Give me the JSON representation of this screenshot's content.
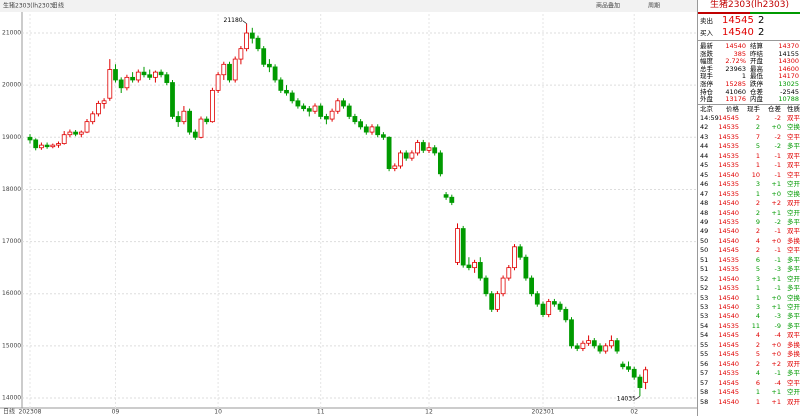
{
  "chart_data": {
    "type": "candlestick",
    "title": "生猪2303(lh2303)",
    "period": "日线",
    "ylim": [
      13808,
      21365
    ],
    "yticks": [
      14000,
      15000,
      16000,
      17000,
      18000,
      19000,
      20000,
      21000
    ],
    "grid": true,
    "up_color": "#e00000",
    "down_color": "#009a00",
    "categories": [
      "202308",
      null,
      null,
      null,
      null,
      null,
      null,
      null,
      null,
      null,
      null,
      null,
      null,
      null,
      null,
      "09",
      null,
      null,
      null,
      null,
      null,
      null,
      null,
      null,
      null,
      null,
      null,
      null,
      null,
      null,
      null,
      null,
      null,
      "10",
      null,
      null,
      null,
      null,
      null,
      null,
      null,
      null,
      null,
      null,
      null,
      null,
      null,
      null,
      null,
      null,
      null,
      "11",
      null,
      null,
      null,
      null,
      null,
      null,
      null,
      null,
      null,
      null,
      null,
      null,
      null,
      null,
      null,
      null,
      null,
      null,
      "12",
      null,
      null,
      null,
      null,
      null,
      null,
      null,
      null,
      null,
      null,
      null,
      null,
      null,
      null,
      null,
      null,
      null,
      null,
      null,
      "202301",
      null,
      null,
      null,
      null,
      null,
      null,
      null,
      null,
      null,
      null,
      null,
      null,
      null,
      null,
      null,
      "02",
      null,
      null
    ],
    "candles": [
      [
        19000,
        19060,
        18880,
        18950
      ],
      [
        18950,
        18980,
        18750,
        18800
      ],
      [
        18800,
        18900,
        18760,
        18850
      ],
      [
        18850,
        18900,
        18780,
        18820
      ],
      [
        18820,
        18880,
        18790,
        18850
      ],
      [
        18850,
        18920,
        18800,
        18880
      ],
      [
        18880,
        19120,
        18860,
        19050
      ],
      [
        19050,
        19150,
        19000,
        19100
      ],
      [
        19100,
        19140,
        19020,
        19060
      ],
      [
        19060,
        19130,
        19000,
        19100
      ],
      [
        19100,
        19350,
        19080,
        19300
      ],
      [
        19300,
        19500,
        19250,
        19450
      ],
      [
        19450,
        19700,
        19400,
        19650
      ],
      [
        19650,
        19750,
        19550,
        19700
      ],
      [
        19750,
        20500,
        19700,
        20300
      ],
      [
        20300,
        20400,
        20050,
        20100
      ],
      [
        20100,
        20150,
        19850,
        19950
      ],
      [
        19950,
        20200,
        19900,
        20150
      ],
      [
        20150,
        20250,
        20050,
        20100
      ],
      [
        20100,
        20300,
        20050,
        20250
      ],
      [
        20250,
        20350,
        20150,
        20200
      ],
      [
        20200,
        20300,
        20100,
        20150
      ],
      [
        20150,
        20280,
        20050,
        20250
      ],
      [
        20250,
        20300,
        20150,
        20200
      ],
      [
        20200,
        20250,
        20000,
        20050
      ],
      [
        20050,
        20100,
        19350,
        19400
      ],
      [
        19400,
        19500,
        19200,
        19300
      ],
      [
        19300,
        19600,
        19250,
        19500
      ],
      [
        19500,
        19550,
        19050,
        19100
      ],
      [
        19100,
        19150,
        18950,
        19000
      ],
      [
        19000,
        19400,
        18980,
        19350
      ],
      [
        19350,
        19400,
        19250,
        19300
      ],
      [
        19300,
        19950,
        19280,
        19900
      ],
      [
        19900,
        20250,
        19850,
        20200
      ],
      [
        20200,
        20450,
        20100,
        20400
      ],
      [
        20400,
        20450,
        20050,
        20100
      ],
      [
        20100,
        20550,
        20050,
        20500
      ],
      [
        20500,
        20750,
        20400,
        20700
      ],
      [
        20700,
        21180,
        20650,
        21000
      ],
      [
        21000,
        21100,
        20800,
        20900
      ],
      [
        20900,
        20950,
        20650,
        20700
      ],
      [
        20700,
        20750,
        20350,
        20400
      ],
      [
        20400,
        20500,
        20250,
        20350
      ],
      [
        20350,
        20400,
        20050,
        20100
      ],
      [
        20100,
        20150,
        19850,
        19900
      ],
      [
        19900,
        20000,
        19800,
        19850
      ],
      [
        19850,
        19900,
        19650,
        19700
      ],
      [
        19700,
        19750,
        19550,
        19600
      ],
      [
        19600,
        19650,
        19500,
        19550
      ],
      [
        19550,
        19600,
        19400,
        19500
      ],
      [
        19500,
        19650,
        19450,
        19600
      ],
      [
        19600,
        19650,
        19350,
        19400
      ],
      [
        19400,
        19450,
        19250,
        19350
      ],
      [
        19350,
        19550,
        19300,
        19500
      ],
      [
        19500,
        19750,
        19450,
        19700
      ],
      [
        19700,
        19750,
        19550,
        19600
      ],
      [
        19600,
        19650,
        19350,
        19400
      ],
      [
        19400,
        19450,
        19250,
        19300
      ],
      [
        19300,
        19350,
        19150,
        19200
      ],
      [
        19200,
        19250,
        19050,
        19100
      ],
      [
        19100,
        19250,
        19050,
        19200
      ],
      [
        19200,
        19250,
        19000,
        19050
      ],
      [
        19050,
        19100,
        18950,
        19000
      ],
      [
        19000,
        19020,
        18350,
        18400
      ],
      [
        18400,
        18500,
        18350,
        18450
      ],
      [
        18450,
        18750,
        18400,
        18700
      ],
      [
        18700,
        18750,
        18550,
        18600
      ],
      [
        18600,
        18750,
        18550,
        18700
      ],
      [
        18700,
        18950,
        18650,
        18900
      ],
      [
        18900,
        18950,
        18700,
        18750
      ],
      [
        18750,
        18900,
        18700,
        18800
      ],
      [
        18800,
        18850,
        18650,
        18700
      ],
      [
        18700,
        18750,
        18250,
        18300
      ],
      [
        17900,
        17950,
        17800,
        17850
      ],
      [
        17850,
        17900,
        17700,
        17750
      ],
      [
        16600,
        17350,
        16550,
        17250
      ],
      [
        17250,
        17300,
        16500,
        16550
      ],
      [
        16550,
        16700,
        16450,
        16500
      ],
      [
        16500,
        16650,
        16400,
        16600
      ],
      [
        16600,
        16700,
        16250,
        16300
      ],
      [
        16300,
        16350,
        15950,
        16000
      ],
      [
        16000,
        16050,
        15650,
        15700
      ],
      [
        15700,
        16050,
        15650,
        16000
      ],
      [
        16000,
        16350,
        15950,
        16300
      ],
      [
        16300,
        16550,
        16250,
        16500
      ],
      [
        16500,
        16950,
        16450,
        16900
      ],
      [
        16900,
        16950,
        16650,
        16700
      ],
      [
        16700,
        16750,
        16250,
        16300
      ],
      [
        16300,
        16350,
        15950,
        16000
      ],
      [
        16000,
        16050,
        15750,
        15800
      ],
      [
        15800,
        15850,
        15550,
        15600
      ],
      [
        15600,
        15900,
        15550,
        15850
      ],
      [
        15850,
        15900,
        15750,
        15800
      ],
      [
        15800,
        15850,
        15650,
        15700
      ],
      [
        15700,
        15750,
        15450,
        15500
      ],
      [
        15500,
        15550,
        14950,
        15000
      ],
      [
        15000,
        15050,
        14900,
        14950
      ],
      [
        14950,
        15100,
        14900,
        15050
      ],
      [
        15050,
        15200,
        15000,
        15100
      ],
      [
        15100,
        15150,
        14950,
        15000
      ],
      [
        15000,
        15050,
        14850,
        14900
      ],
      [
        14900,
        15050,
        14850,
        15000
      ],
      [
        15000,
        15200,
        14950,
        15100
      ],
      [
        15100,
        15150,
        14850,
        14900
      ],
      [
        14650,
        14700,
        14550,
        14600
      ],
      [
        14600,
        14700,
        14500,
        14550
      ],
      [
        14550,
        14600,
        14350,
        14400
      ],
      [
        14400,
        14450,
        14035,
        14200
      ],
      [
        14300,
        14600,
        14170,
        14540
      ]
    ]
  },
  "toolbar": {
    "buttons": [
      "商品叠加",
      "周期"
    ]
  },
  "quote": {
    "title": "生猪2303(lh2303)",
    "ask": [
      "卖出",
      "14545",
      "2"
    ],
    "bid": [
      "买入",
      "14540",
      "2"
    ],
    "stats": [
      [
        "最新",
        "14540",
        "结算",
        "14370"
      ],
      [
        "涨跌",
        "385",
        "昨结",
        "14155"
      ],
      [
        "幅度",
        "2.72%",
        "开盘",
        "14300"
      ],
      [
        "总手",
        "23963",
        "最高",
        "14600"
      ],
      [
        "现手",
        "1",
        "最低",
        "14170"
      ],
      [
        "涨停",
        "15285",
        "跌停",
        "13025"
      ],
      [
        "持仓",
        "41060",
        "仓差",
        "-2545"
      ],
      [
        "外盘",
        "13176",
        "内盘",
        "10788"
      ]
    ],
    "stat_colors": [
      [
        "#e00000",
        "#e00000"
      ],
      [
        "#e00000",
        "#000000"
      ],
      [
        "#e00000",
        "#e00000"
      ],
      [
        "#000000",
        "#e00000"
      ],
      [
        "#000000",
        "#e00000"
      ],
      [
        "#e00000",
        "#009a00"
      ],
      [
        "#000000",
        "#000000"
      ],
      [
        "#e00000",
        "#009a00"
      ]
    ],
    "trade_header": [
      "北京",
      "价格",
      "现手",
      "仓差",
      "性质"
    ],
    "trades": [
      [
        "14:59",
        "14545",
        "2",
        "-2",
        "双平"
      ],
      [
        "42",
        "14535",
        "2",
        "+0",
        "空换"
      ],
      [
        "43",
        "14535",
        "7",
        "-2",
        "空平"
      ],
      [
        "44",
        "14535",
        "5",
        "-2",
        "多平"
      ],
      [
        "44",
        "14535",
        "1",
        "-1",
        "双平"
      ],
      [
        "45",
        "14535",
        "1",
        "-1",
        "双平"
      ],
      [
        "45",
        "14540",
        "10",
        "-1",
        "空平"
      ],
      [
        "46",
        "14535",
        "3",
        "+1",
        "空开"
      ],
      [
        "47",
        "14535",
        "1",
        "+0",
        "空换"
      ],
      [
        "48",
        "14540",
        "2",
        "+2",
        "双开"
      ],
      [
        "48",
        "14540",
        "2",
        "+1",
        "空开"
      ],
      [
        "49",
        "14535",
        "9",
        "-2",
        "多平"
      ],
      [
        "49",
        "14540",
        "2",
        "-1",
        "双平"
      ],
      [
        "50",
        "14540",
        "4",
        "+0",
        "多换"
      ],
      [
        "50",
        "14545",
        "2",
        "-1",
        "空平"
      ],
      [
        "51",
        "14535",
        "6",
        "-1",
        "多平"
      ],
      [
        "51",
        "14535",
        "5",
        "-3",
        "多平"
      ],
      [
        "52",
        "14540",
        "3",
        "+1",
        "空开"
      ],
      [
        "52",
        "14535",
        "1",
        "-1",
        "多平"
      ],
      [
        "53",
        "14540",
        "1",
        "+0",
        "空换"
      ],
      [
        "53",
        "14540",
        "3",
        "+1",
        "空开"
      ],
      [
        "53",
        "14540",
        "4",
        "-3",
        "多平"
      ],
      [
        "54",
        "14535",
        "11",
        "-9",
        "多平"
      ],
      [
        "54",
        "14545",
        "4",
        "-4",
        "双平"
      ],
      [
        "55",
        "14545",
        "2",
        "+0",
        "多换"
      ],
      [
        "55",
        "14545",
        "5",
        "+0",
        "多换"
      ],
      [
        "56",
        "14540",
        "2",
        "+2",
        "双开"
      ],
      [
        "57",
        "14535",
        "4",
        "-1",
        "多平"
      ],
      [
        "57",
        "14545",
        "6",
        "-4",
        "空平"
      ],
      [
        "58",
        "14545",
        "1",
        "+1",
        "空开"
      ],
      [
        "58",
        "14540",
        "1",
        "+1",
        "双开"
      ]
    ],
    "trade_colors": [
      "#e00000",
      "#009a00",
      "#e00000",
      "#009a00",
      "#e00000",
      "#e00000",
      "#e00000",
      "#009a00",
      "#009a00",
      "#e00000",
      "#009a00",
      "#009a00",
      "#e00000",
      "#e00000",
      "#e00000",
      "#009a00",
      "#009a00",
      "#009a00",
      "#009a00",
      "#009a00",
      "#009a00",
      "#009a00",
      "#009a00",
      "#e00000",
      "#e00000",
      "#e00000",
      "#e00000",
      "#009a00",
      "#e00000",
      "#009a00",
      "#e00000"
    ]
  }
}
